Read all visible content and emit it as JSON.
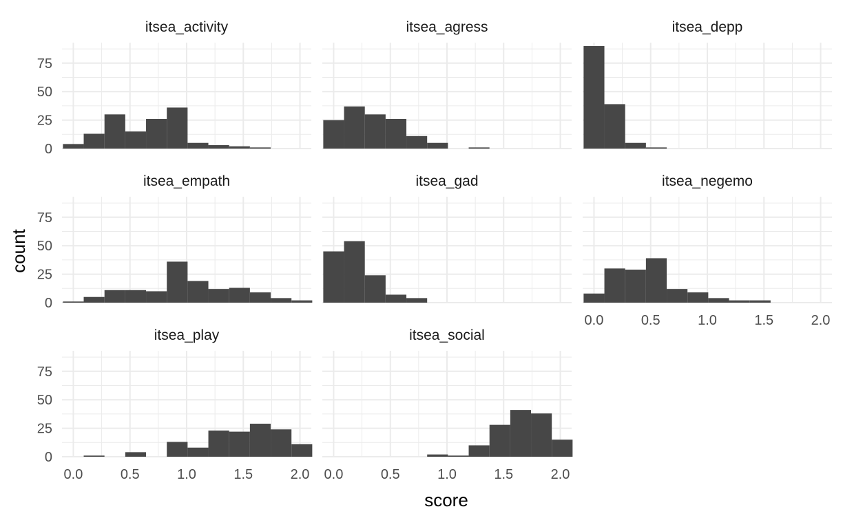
{
  "chart_data": {
    "type": "bar",
    "subtype": "faceted-histogram",
    "xlabel": "score",
    "ylabel": "count",
    "xlim": [
      -0.1,
      2.1
    ],
    "ylim": [
      0,
      93
    ],
    "binwidth": 0.1833,
    "x_ticks": [
      0.0,
      0.5,
      1.0,
      1.5,
      2.0
    ],
    "x_tick_labels": [
      "0.0",
      "0.5",
      "1.0",
      "1.5",
      "2.0"
    ],
    "y_ticks": [
      0,
      25,
      50,
      75
    ],
    "y_tick_labels": [
      "0",
      "25",
      "50",
      "75"
    ],
    "bin_centers": [
      0.0,
      0.1833,
      0.3667,
      0.55,
      0.7333,
      0.9167,
      1.1,
      1.2833,
      1.4667,
      1.65,
      1.8333,
      2.0167
    ],
    "grid": "on",
    "facets": [
      {
        "name": "itsea_activity",
        "values": [
          4,
          13,
          30,
          15,
          26,
          36,
          5,
          3,
          2,
          1,
          0,
          0
        ]
      },
      {
        "name": "itsea_agress",
        "values": [
          25,
          37,
          30,
          26,
          11,
          5,
          0,
          1,
          0,
          0,
          0,
          0
        ]
      },
      {
        "name": "itsea_depp",
        "values": [
          90,
          39,
          5,
          1,
          0,
          0,
          0,
          0,
          0,
          0,
          0,
          0
        ]
      },
      {
        "name": "itsea_empath",
        "values": [
          1,
          5,
          11,
          11,
          10,
          36,
          19,
          12,
          13,
          9,
          4,
          2
        ]
      },
      {
        "name": "itsea_gad",
        "values": [
          45,
          54,
          24,
          7,
          4,
          0,
          0,
          0,
          0,
          0,
          0,
          0
        ]
      },
      {
        "name": "itsea_negemo",
        "values": [
          8,
          30,
          29,
          39,
          12,
          9,
          4,
          2,
          2,
          0,
          0,
          0
        ]
      },
      {
        "name": "itsea_play",
        "values": [
          0,
          1,
          0,
          4,
          0,
          13,
          8,
          23,
          22,
          29,
          24,
          11
        ]
      },
      {
        "name": "itsea_social",
        "values": [
          0,
          0,
          0,
          0,
          0,
          2,
          1,
          10,
          28,
          41,
          38,
          15
        ]
      }
    ]
  }
}
